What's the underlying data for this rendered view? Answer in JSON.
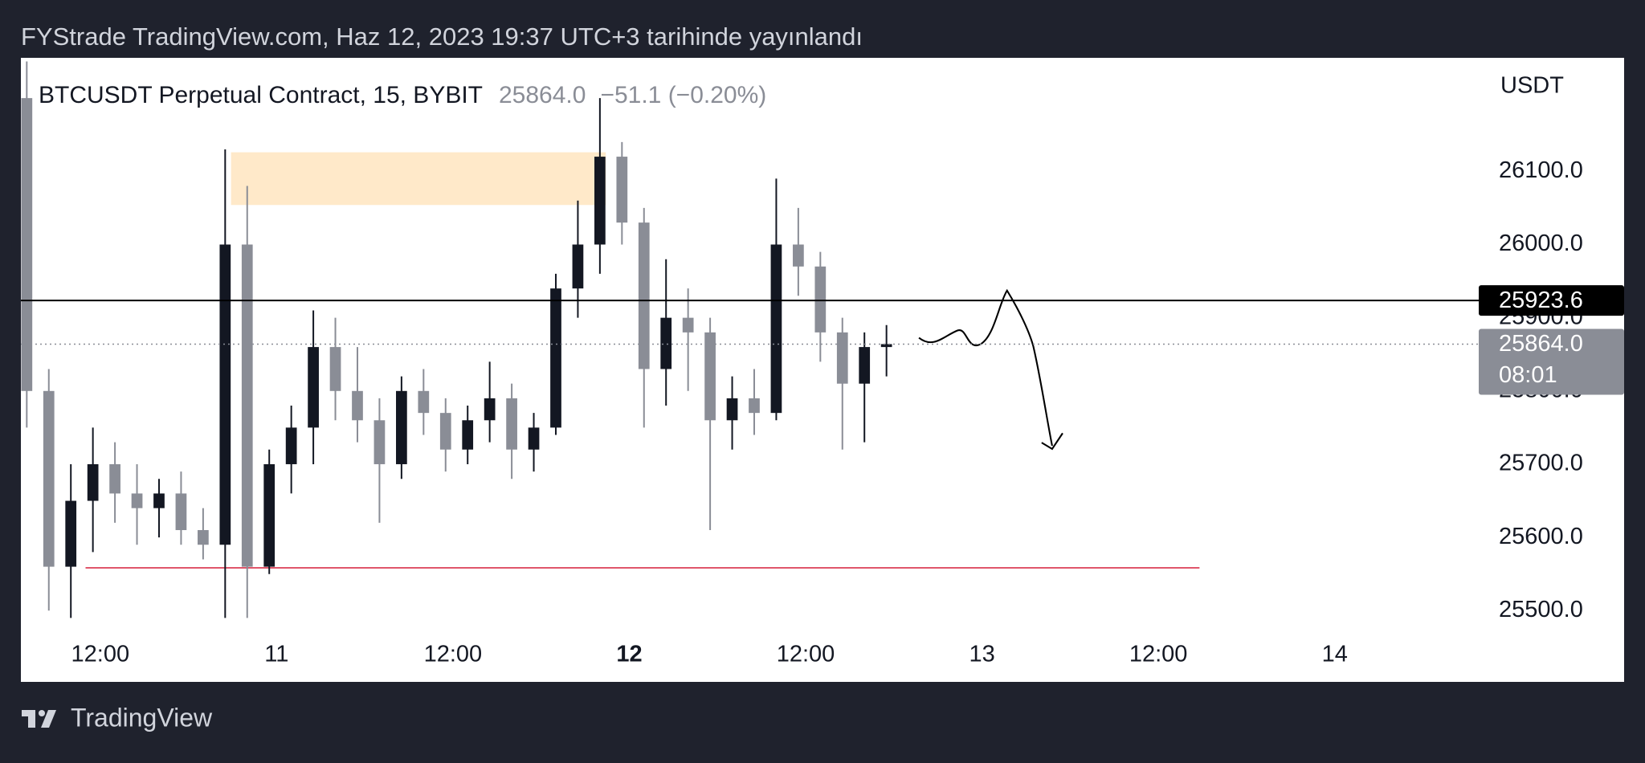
{
  "header": {
    "title": "FYStrade TradingView.com, Haz 12, 2023 19:37 UTC+3 tarihinde yayınlandı"
  },
  "chart_data": {
    "type": "candlestick",
    "title": "BTCUSDT Perpetual Contract, 15, BYBIT",
    "change": "−51.1 (−0.20%)",
    "y_axis_label": "USDT",
    "x": [
      -5,
      -3.5,
      -2,
      -0.5,
      1,
      2.5,
      4,
      5.5,
      7,
      8.5,
      10,
      11.5,
      13,
      14.5,
      16,
      17.5,
      19,
      20.5,
      22,
      23.5,
      25,
      26.5,
      28,
      29.5,
      31,
      32.5,
      34,
      35.5,
      37,
      38.5,
      40,
      41.5,
      43,
      44.5,
      46,
      47.5,
      49,
      50.5,
      52,
      53.5
    ],
    "open": [
      26200,
      25800,
      25560,
      25650,
      25700,
      25660,
      25640,
      25660,
      25610,
      25590,
      26000,
      25560,
      25700,
      25750,
      25860,
      25800,
      25760,
      25700,
      25800,
      25770,
      25720,
      25760,
      25790,
      25720,
      25750,
      25940,
      26000,
      26120,
      26030,
      25830,
      25900,
      25880,
      25760,
      25790,
      25770,
      26000,
      25970,
      25880,
      25810,
      25860
    ],
    "high": [
      26250,
      25830,
      25700,
      25750,
      25730,
      25700,
      25680,
      25690,
      25640,
      26130,
      26080,
      25720,
      25780,
      25910,
      25900,
      25860,
      25790,
      25820,
      25830,
      25790,
      25780,
      25840,
      25810,
      25770,
      25960,
      26060,
      26200,
      26140,
      26050,
      25980,
      25940,
      25900,
      25820,
      25830,
      26090,
      26050,
      25990,
      25900,
      25880,
      25890
    ],
    "low": [
      25750,
      25500,
      25490,
      25580,
      25620,
      25590,
      25600,
      25590,
      25570,
      25490,
      25490,
      25550,
      25660,
      25700,
      25760,
      25730,
      25620,
      25680,
      25740,
      25690,
      25700,
      25730,
      25680,
      25690,
      25740,
      25900,
      25960,
      26000,
      25750,
      25780,
      25800,
      25610,
      25720,
      25740,
      25760,
      25930,
      25840,
      25720,
      25730,
      25820
    ],
    "close": [
      25800,
      25560,
      25650,
      25700,
      25660,
      25640,
      25660,
      25610,
      25590,
      26000,
      25560,
      25700,
      25750,
      25860,
      25800,
      25760,
      25700,
      25800,
      25770,
      25720,
      25760,
      25790,
      25720,
      25750,
      25940,
      26000,
      26120,
      26030,
      25830,
      25900,
      25880,
      25760,
      25790,
      25770,
      26000,
      25970,
      25880,
      25810,
      25860,
      25864
    ],
    "up_color": "#131722",
    "down_color": "#8a8d96",
    "xlim": [
      -5.4,
      93.8
    ],
    "xticks": [
      {
        "value": 0,
        "label": "12:00"
      },
      {
        "value": 12,
        "label": "11"
      },
      {
        "value": 24,
        "label": "12:00"
      },
      {
        "value": 36,
        "label": "12"
      },
      {
        "value": 48,
        "label": "12:00"
      },
      {
        "value": 60,
        "label": "13"
      },
      {
        "value": 72,
        "label": "12:00"
      },
      {
        "value": 84,
        "label": "14"
      }
    ],
    "xtick_bold": [
      false,
      false,
      false,
      true,
      false,
      false,
      false,
      false
    ],
    "ylim": [
      25474,
      26255
    ],
    "yticks": [
      {
        "value": 25500,
        "label": "25500.0"
      },
      {
        "value": 25600,
        "label": "25600.0"
      },
      {
        "value": 25700,
        "label": "25700.0"
      },
      {
        "value": 25800,
        "label": "25800.0"
      },
      {
        "value": 25900,
        "label": "25900.0"
      },
      {
        "value": 26000,
        "label": "26000.0"
      },
      {
        "value": 26100,
        "label": "26100.0"
      }
    ],
    "grid": false,
    "price_lines": [
      {
        "value": 25923.6,
        "label": "25923.6",
        "color": "#000000",
        "style": "solid"
      },
      {
        "value": 25864,
        "label": "25864.0",
        "color": "#8a8d96",
        "style": "dotted",
        "countdown": "08:01"
      }
    ],
    "support_line": {
      "value": 25558.5,
      "x": [
        -1,
        74.8
      ],
      "color": "#e0566b"
    },
    "zone": {
      "x": [
        8.9,
        34.4
      ],
      "y": [
        26054,
        26126
      ],
      "color": "#ffe9c9"
    }
  },
  "footer": {
    "brand": "TradingView"
  }
}
